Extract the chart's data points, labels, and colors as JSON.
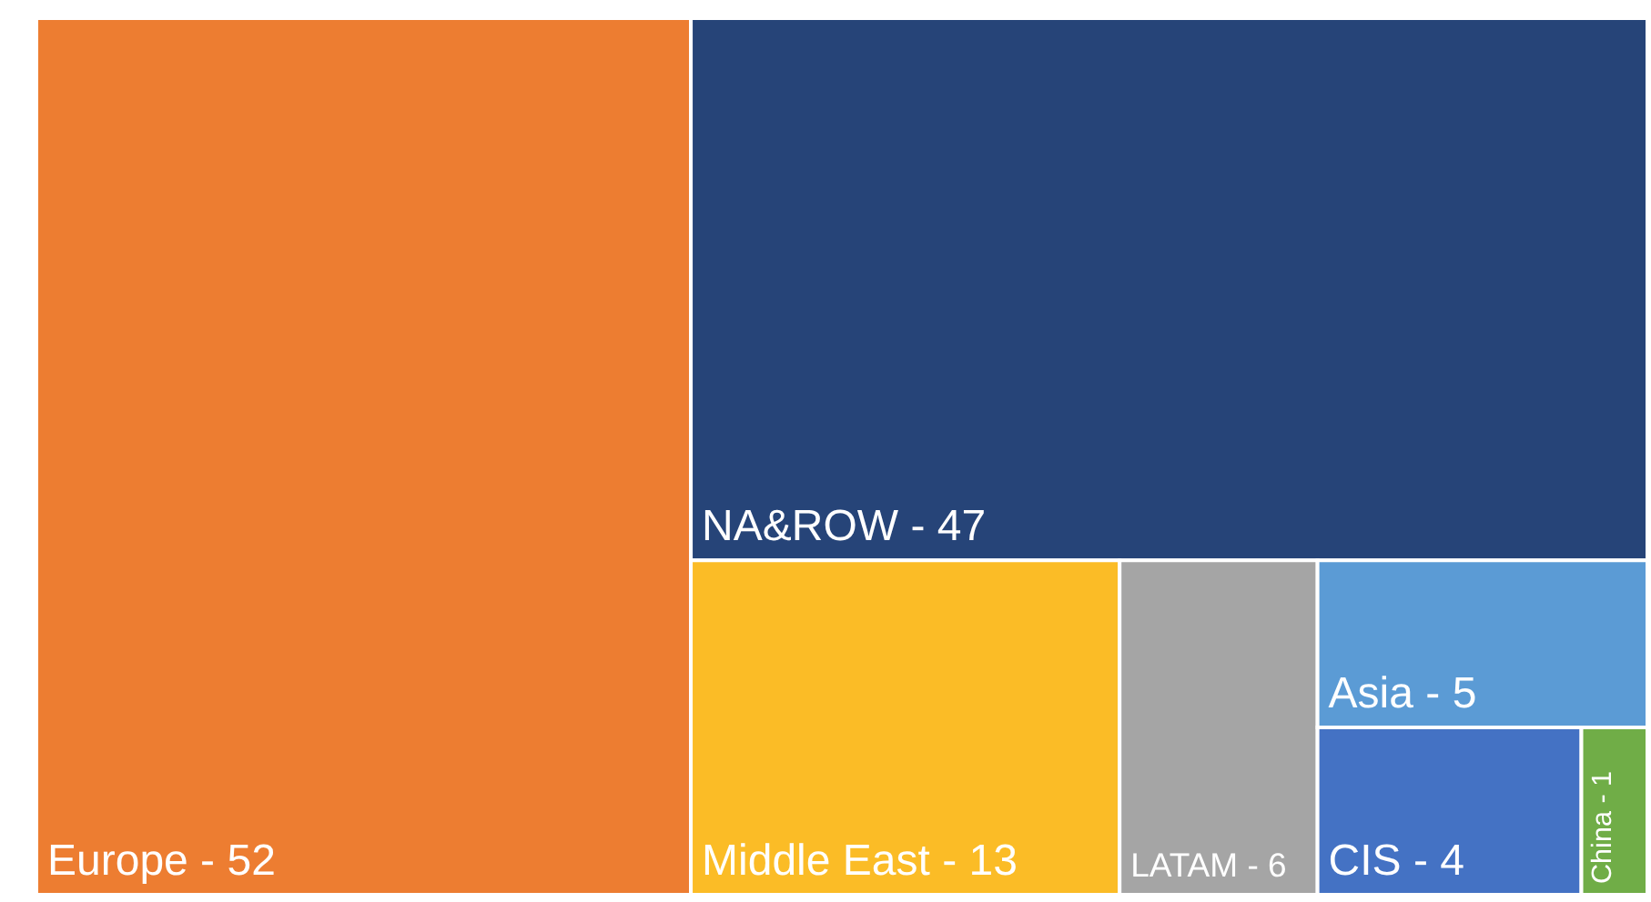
{
  "chart_data": {
    "type": "other",
    "categories": [
      "Europe -",
      "NA&ROW -",
      "Middle East -",
      "LATAM -",
      "Asia -",
      "CIS -",
      "China -"
    ],
    "values": [
      52,
      47,
      13,
      6,
      5,
      4,
      1
    ],
    "colors": [
      "#ed7d31",
      "#264478",
      "#fbbc26",
      "#a5a5a5",
      "#5b9bd5",
      "#4472c4",
      "#70ad47"
    ],
    "data_labels": true
  }
}
